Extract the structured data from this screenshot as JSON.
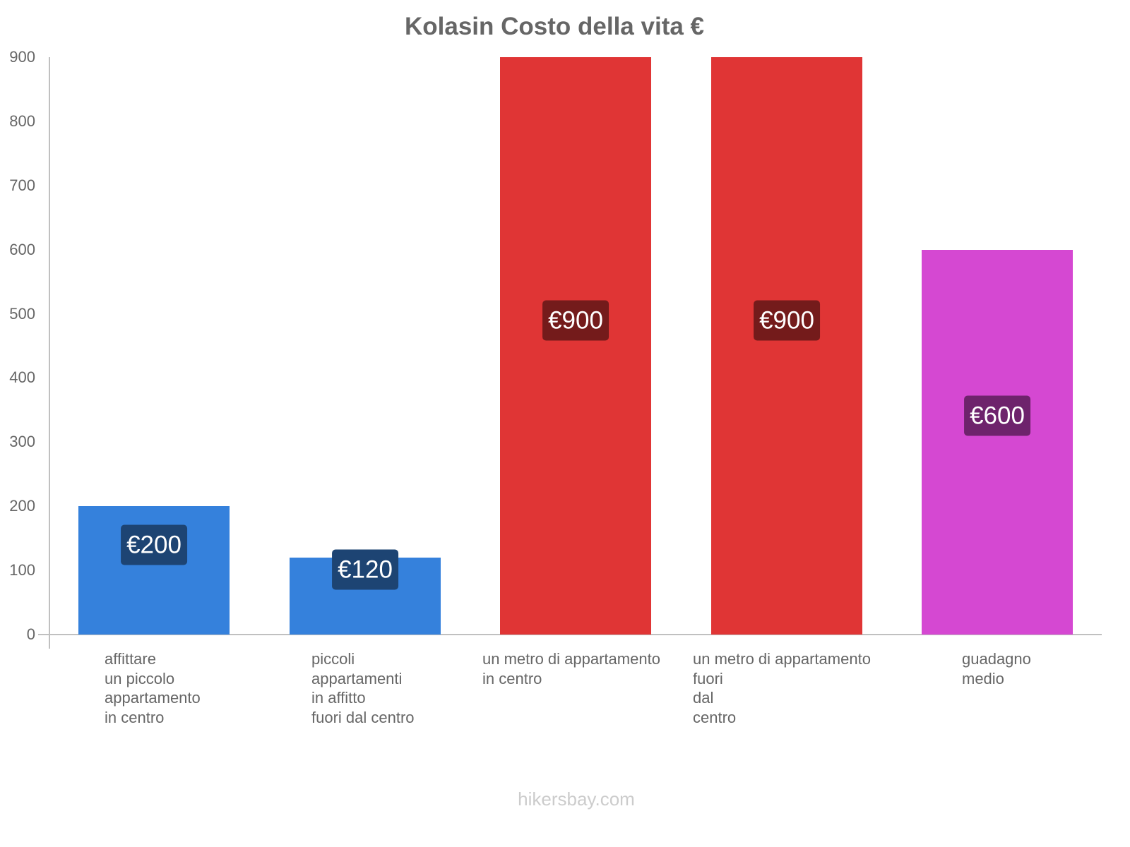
{
  "header": {
    "title": "Kolasin Costo della vita €"
  },
  "footer": {
    "watermark": "hikersbay.com"
  },
  "axis": {
    "y_ticks": [
      "0",
      "100",
      "200",
      "300",
      "400",
      "500",
      "600",
      "700",
      "800",
      "900"
    ]
  },
  "bars": [
    {
      "label_lines": "affittare\nun piccolo\nappartamento\nin centro",
      "value_label": "€200",
      "value": 200,
      "color": "#3581dc",
      "label_bg": "#1d4473"
    },
    {
      "label_lines": "piccoli\nappartamenti\nin affitto\nfuori dal centro",
      "value_label": "€120",
      "value": 120,
      "color": "#3581dc",
      "label_bg": "#1d4473"
    },
    {
      "label_lines": "un metro di appartamento\nin centro",
      "value_label": "€900",
      "value": 900,
      "color": "#e03535",
      "label_bg": "#741b1b"
    },
    {
      "label_lines": "un metro di appartamento\nfuori\ndal\ncentro",
      "value_label": "€900",
      "value": 900,
      "color": "#e03535",
      "label_bg": "#741b1b"
    },
    {
      "label_lines": "guadagno\nmedio",
      "value_label": "€600",
      "value": 600,
      "color": "#d548d2",
      "label_bg": "#6e236c"
    }
  ],
  "chart_data": {
    "type": "bar",
    "title": "Kolasin Costo della vita €",
    "categories": [
      "affittare un piccolo appartamento in centro",
      "piccoli appartamenti in affitto fuori dal centro",
      "un metro di appartamento in centro",
      "un metro di appartamento fuori dal centro",
      "guadagno medio"
    ],
    "values": [
      200,
      120,
      900,
      900,
      600
    ],
    "value_labels": [
      "€200",
      "€120",
      "€900",
      "€900",
      "€600"
    ],
    "colors": [
      "#3581dc",
      "#3581dc",
      "#e03535",
      "#e03535",
      "#d548d2"
    ],
    "xlabel": "",
    "ylabel": "",
    "ylim": [
      0,
      900
    ],
    "y_ticks": [
      0,
      100,
      200,
      300,
      400,
      500,
      600,
      700,
      800,
      900
    ],
    "grid": false,
    "legend": "none",
    "source": "hikersbay.com"
  }
}
